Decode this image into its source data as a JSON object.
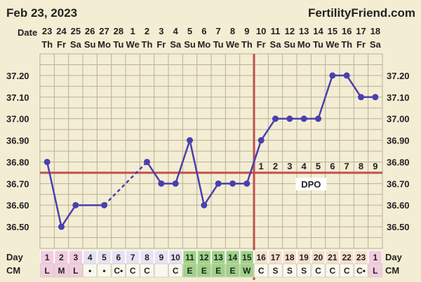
{
  "header": {
    "date": "Feb 23, 2023",
    "site": "FertilityFriend.com"
  },
  "labels": {
    "date_row": "Date",
    "day_row": "Day",
    "cm_row": "CM",
    "dpo": "DPO"
  },
  "colors": {
    "background": "#f3edd3",
    "grid": "#b8b098",
    "line": "#4a3fb0",
    "coverline": "#c0504d",
    "ovulation": "#c0504d",
    "cell_default": "#e6e2f3",
    "cell_green": "#9ed38a",
    "cell_pink": "#f2cce0",
    "cell_salmon": "#f6e0cc"
  },
  "chart_data": {
    "type": "line",
    "title": "",
    "xlabel": "",
    "ylabel": "",
    "ylim": [
      36.4,
      37.3
    ],
    "yticks": [
      "37.20",
      "37.10",
      "37.00",
      "36.90",
      "36.80",
      "36.70",
      "36.60",
      "36.50"
    ],
    "grid": true,
    "dates": [
      "23",
      "24",
      "25",
      "26",
      "27",
      "28",
      "1",
      "2",
      "3",
      "4",
      "5",
      "6",
      "7",
      "8",
      "9",
      "10",
      "11",
      "12",
      "13",
      "14",
      "15",
      "16",
      "17",
      "18"
    ],
    "weekdays": [
      "Th",
      "Fr",
      "Sa",
      "Su",
      "Mo",
      "Tu",
      "We",
      "Th",
      "Fr",
      "Sa",
      "Su",
      "Mo",
      "Tu",
      "We",
      "Th",
      "Fr",
      "Sa",
      "Su",
      "Mo",
      "Tu",
      "We",
      "Th",
      "Fr",
      "Sa"
    ],
    "cycle_days": [
      "1",
      "2",
      "3",
      "4",
      "5",
      "6",
      "7",
      "8",
      "9",
      "10",
      "11",
      "12",
      "13",
      "14",
      "15",
      "16",
      "17",
      "18",
      "19",
      "20",
      "21",
      "22",
      "23",
      "1"
    ],
    "cm": [
      "L",
      "M",
      "L",
      "•",
      "•",
      "C•",
      "C",
      "C",
      "",
      "C",
      "E",
      "E",
      "E",
      "E",
      "W",
      "C",
      "S",
      "S",
      "S",
      "C",
      "C",
      "C",
      "C•",
      "L"
    ],
    "cell_styles": [
      "pink",
      "pink",
      "pink",
      "default",
      "default",
      "default",
      "default",
      "default",
      "default",
      "default",
      "green",
      "green",
      "green",
      "green",
      "green",
      "salmon",
      "salmon",
      "salmon",
      "salmon",
      "salmon",
      "salmon",
      "salmon",
      "salmon",
      "pink"
    ],
    "temperatures": [
      36.8,
      36.5,
      36.6,
      null,
      36.6,
      null,
      null,
      36.8,
      36.7,
      36.7,
      36.9,
      36.6,
      36.7,
      36.7,
      36.7,
      36.9,
      37.0,
      37.0,
      37.0,
      37.0,
      37.2,
      37.2,
      37.1,
      37.1
    ],
    "dashed_segments": [
      [
        4,
        7
      ]
    ],
    "coverline": 36.75,
    "ovulation_day_index": 14,
    "dpo_labels": [
      "1",
      "2",
      "3",
      "4",
      "5",
      "6",
      "7",
      "8",
      "9"
    ]
  }
}
